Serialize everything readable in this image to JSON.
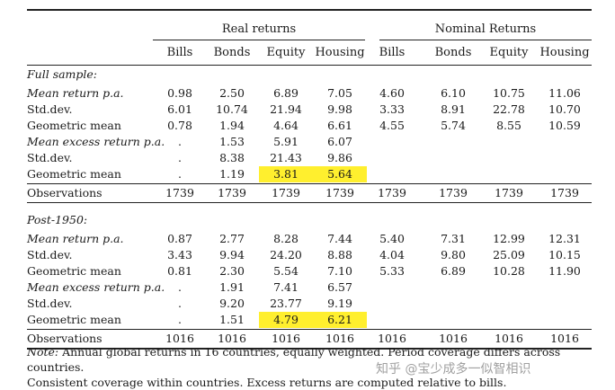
{
  "header": {
    "groups": [
      "Real returns",
      "Nominal Returns"
    ],
    "columns": [
      "Bills",
      "Bonds",
      "Equity",
      "Housing",
      "Bills",
      "Bonds",
      "Equity",
      "Housing"
    ]
  },
  "sections": [
    {
      "title": "Full sample:",
      "rows": [
        {
          "label": "Mean return p.a.",
          "italic": true,
          "values": [
            "0.98",
            "2.50",
            "6.89",
            "7.05",
            "4.60",
            "6.10",
            "10.75",
            "11.06"
          ]
        },
        {
          "label": "Std.dev.",
          "italic": false,
          "values": [
            "6.01",
            "10.74",
            "21.94",
            "9.98",
            "3.33",
            "8.91",
            "22.78",
            "10.70"
          ]
        },
        {
          "label": "Geometric mean",
          "italic": false,
          "values": [
            "0.78",
            "1.94",
            "4.64",
            "6.61",
            "4.55",
            "5.74",
            "8.55",
            "10.59"
          ]
        },
        {
          "label": "Mean excess return p.a.",
          "italic": true,
          "values": [
            ".",
            "1.53",
            "5.91",
            "6.07",
            "",
            "",
            "",
            ""
          ]
        },
        {
          "label": "Std.dev.",
          "italic": false,
          "values": [
            ".",
            "8.38",
            "21.43",
            "9.86",
            "",
            "",
            "",
            ""
          ]
        },
        {
          "label": "Geometric mean",
          "italic": false,
          "values": [
            ".",
            "1.19",
            "3.81",
            "5.64",
            "",
            "",
            "",
            ""
          ],
          "highlight": [
            2,
            3
          ]
        }
      ],
      "observations": {
        "label": "Observations",
        "values": [
          "1739",
          "1739",
          "1739",
          "1739",
          "1739",
          "1739",
          "1739",
          "1739"
        ]
      }
    },
    {
      "title": "Post-1950:",
      "rows": [
        {
          "label": "Mean return p.a.",
          "italic": true,
          "values": [
            "0.87",
            "2.77",
            "8.28",
            "7.44",
            "5.40",
            "7.31",
            "12.99",
            "12.31"
          ]
        },
        {
          "label": "Std.dev.",
          "italic": false,
          "values": [
            "3.43",
            "9.94",
            "24.20",
            "8.88",
            "4.04",
            "9.80",
            "25.09",
            "10.15"
          ]
        },
        {
          "label": "Geometric mean",
          "italic": false,
          "values": [
            "0.81",
            "2.30",
            "5.54",
            "7.10",
            "5.33",
            "6.89",
            "10.28",
            "11.90"
          ]
        },
        {
          "label": "Mean excess return p.a.",
          "italic": true,
          "values": [
            ".",
            "1.91",
            "7.41",
            "6.57",
            "",
            "",
            "",
            ""
          ]
        },
        {
          "label": "Std.dev.",
          "italic": false,
          "values": [
            ".",
            "9.20",
            "23.77",
            "9.19",
            "",
            "",
            "",
            ""
          ]
        },
        {
          "label": "Geometric mean",
          "italic": false,
          "values": [
            ".",
            "1.51",
            "4.79",
            "6.21",
            "",
            "",
            "",
            ""
          ],
          "highlight": [
            2,
            3
          ]
        }
      ],
      "observations": {
        "label": "Observations",
        "values": [
          "1016",
          "1016",
          "1016",
          "1016",
          "1016",
          "1016",
          "1016",
          "1016"
        ]
      }
    }
  ],
  "note": {
    "label": "Note:",
    "line1": "Annual global returns in 16 countries, equally weighted. Period coverage differs across countries.",
    "line2": "Consistent coverage within countries. Excess returns are computed relative to bills."
  },
  "watermark": "知乎 @宝少成多一似智相识",
  "colors": {
    "highlight": "#ffef2e",
    "rule": "#222222"
  }
}
